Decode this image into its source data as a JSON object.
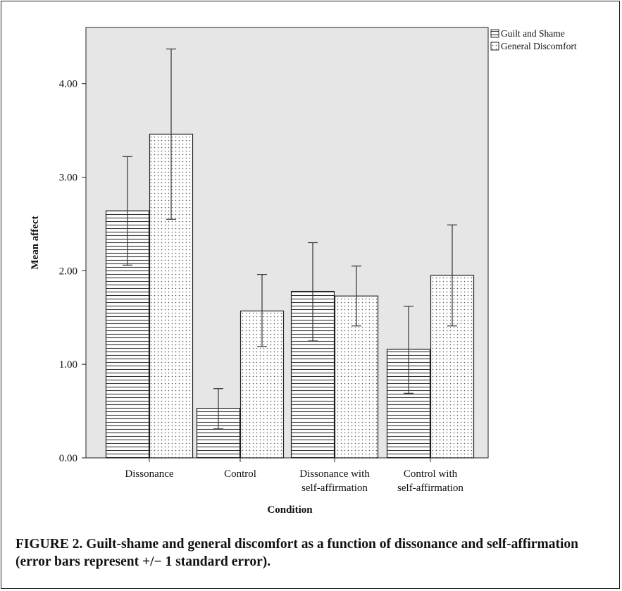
{
  "chart_data": {
    "type": "bar",
    "title": "",
    "xlabel": "Condition",
    "ylabel": "Mean affect",
    "ylim": [
      0,
      4.6
    ],
    "yticks": [
      "0.00",
      "1.00",
      "2.00",
      "3.00",
      "4.00"
    ],
    "ytick_values": [
      0,
      1,
      2,
      3,
      4
    ],
    "grid": false,
    "legend_position": "top-right",
    "categories": [
      [
        "Dissonance"
      ],
      [
        "Control"
      ],
      [
        "Dissonance with",
        "self-affirmation"
      ],
      [
        "Control with",
        "self-affirmation"
      ]
    ],
    "series": [
      {
        "name": "Guilt and Shame",
        "pattern": "horizontal-stripes",
        "values": [
          2.64,
          0.53,
          1.78,
          1.16
        ],
        "error_low": [
          2.06,
          0.31,
          1.25,
          0.69
        ],
        "error_high": [
          3.22,
          0.74,
          2.3,
          1.62
        ]
      },
      {
        "name": "General Discomfort",
        "pattern": "dots",
        "values": [
          3.46,
          1.57,
          1.73,
          1.95
        ],
        "error_low": [
          2.55,
          1.19,
          1.41,
          1.41
        ],
        "error_high": [
          4.37,
          1.96,
          2.05,
          2.49
        ]
      }
    ],
    "colors": {
      "plot_background": "#e6e6e6",
      "bar_fill": "#ffffff",
      "stroke": "#222222"
    }
  },
  "caption": "FIGURE 2. Guilt-shame and general discomfort as a function of dissonance and self-affirmation (error bars represent +/− 1 standard error)."
}
